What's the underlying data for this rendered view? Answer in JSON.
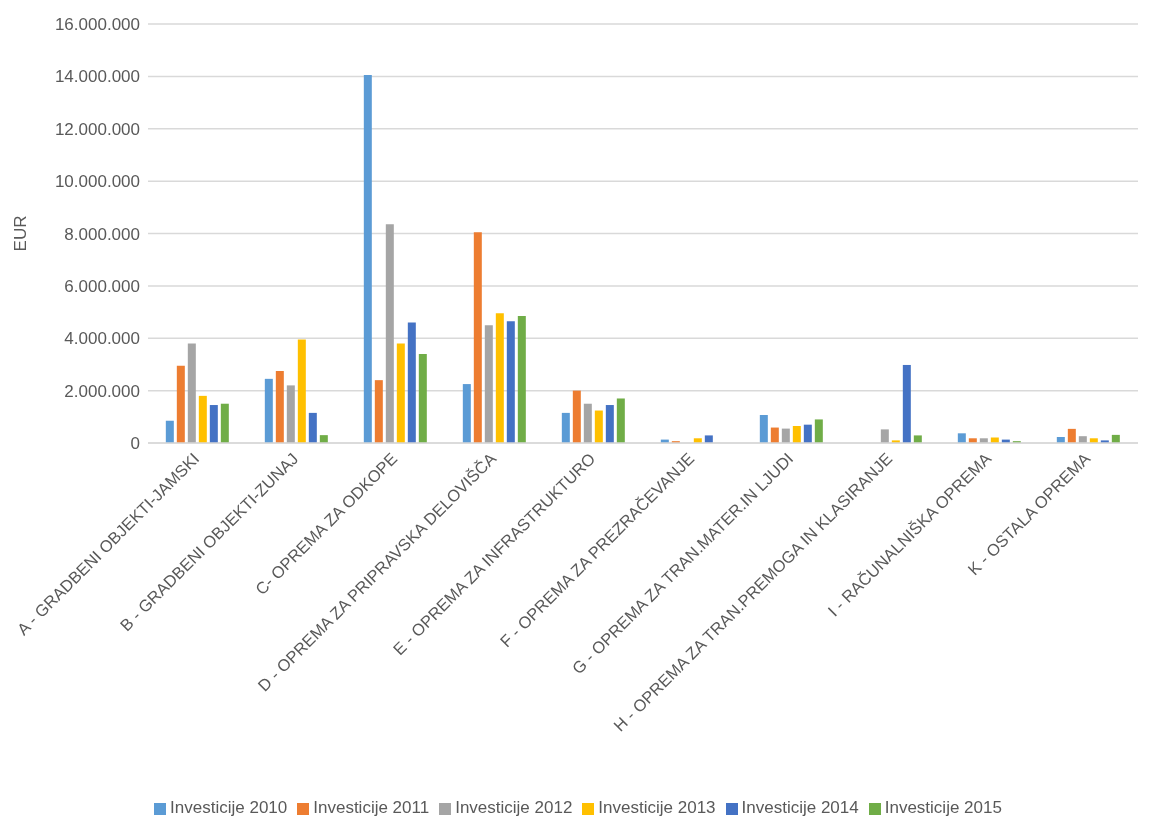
{
  "chart_data": {
    "type": "bar",
    "ylabel": "EUR",
    "categories": [
      "A - GRADBENI OBJEKTI-JAMSKI",
      "B - GRADBENI OBJEKTI-ZUNAJ",
      "C- OPREMA ZA ODKOPE",
      "D - OPREMA ZA PRIPRAVSKA DELOVIŠČA",
      "E - OPREMA ZA INFRASTRUKTURO",
      "F - OPREMA ZA PREZRAČEVANJE",
      "G - OPREMA ZA TRAN.MATER.IN LJUDI",
      "H - OPREMA ZA TRAN.PREMOGA IN KLASIRANJE",
      "I - RAČUNALNIŠKA OPREMA",
      "K - OSTALA OPREMA"
    ],
    "series": [
      {
        "name": "Investicije 2010",
        "color": "#5b9bd5",
        "values": [
          850000,
          2450000,
          14050000,
          2250000,
          1150000,
          130000,
          1070000,
          null,
          370000,
          230000
        ]
      },
      {
        "name": "Investicije 2011",
        "color": "#ed7d31",
        "values": [
          2950000,
          2750000,
          2400000,
          8050000,
          2000000,
          70000,
          590000,
          null,
          180000,
          540000
        ]
      },
      {
        "name": "Investicije 2012",
        "color": "#a5a5a5",
        "values": [
          3800000,
          2200000,
          8350000,
          4500000,
          1500000,
          null,
          550000,
          520000,
          180000,
          260000
        ]
      },
      {
        "name": "Investicije 2013",
        "color": "#ffc000",
        "values": [
          1800000,
          3950000,
          3800000,
          4950000,
          1240000,
          180000,
          650000,
          100000,
          210000,
          180000
        ]
      },
      {
        "name": "Investicije 2014",
        "color": "#4472c4",
        "values": [
          1450000,
          1150000,
          4600000,
          4650000,
          1450000,
          290000,
          700000,
          2980000,
          130000,
          100000
        ]
      },
      {
        "name": "Investicije 2015",
        "color": "#70ad47",
        "values": [
          1500000,
          300000,
          3400000,
          4850000,
          1700000,
          0,
          900000,
          290000,
          70000,
          310000
        ]
      }
    ],
    "ylim": [
      0,
      16000000
    ],
    "yticks": [
      {
        "value": 0,
        "label": "0"
      },
      {
        "value": 2000000,
        "label": "2.000.000"
      },
      {
        "value": 4000000,
        "label": "4.000.000"
      },
      {
        "value": 6000000,
        "label": "6.000.000"
      },
      {
        "value": 8000000,
        "label": "8.000.000"
      },
      {
        "value": 10000000,
        "label": "10.000.000"
      },
      {
        "value": 12000000,
        "label": "12.000.000"
      },
      {
        "value": 14000000,
        "label": "14.000.000"
      },
      {
        "value": 16000000,
        "label": "16.000.000"
      }
    ],
    "grid": "y",
    "legend": "bottom"
  }
}
